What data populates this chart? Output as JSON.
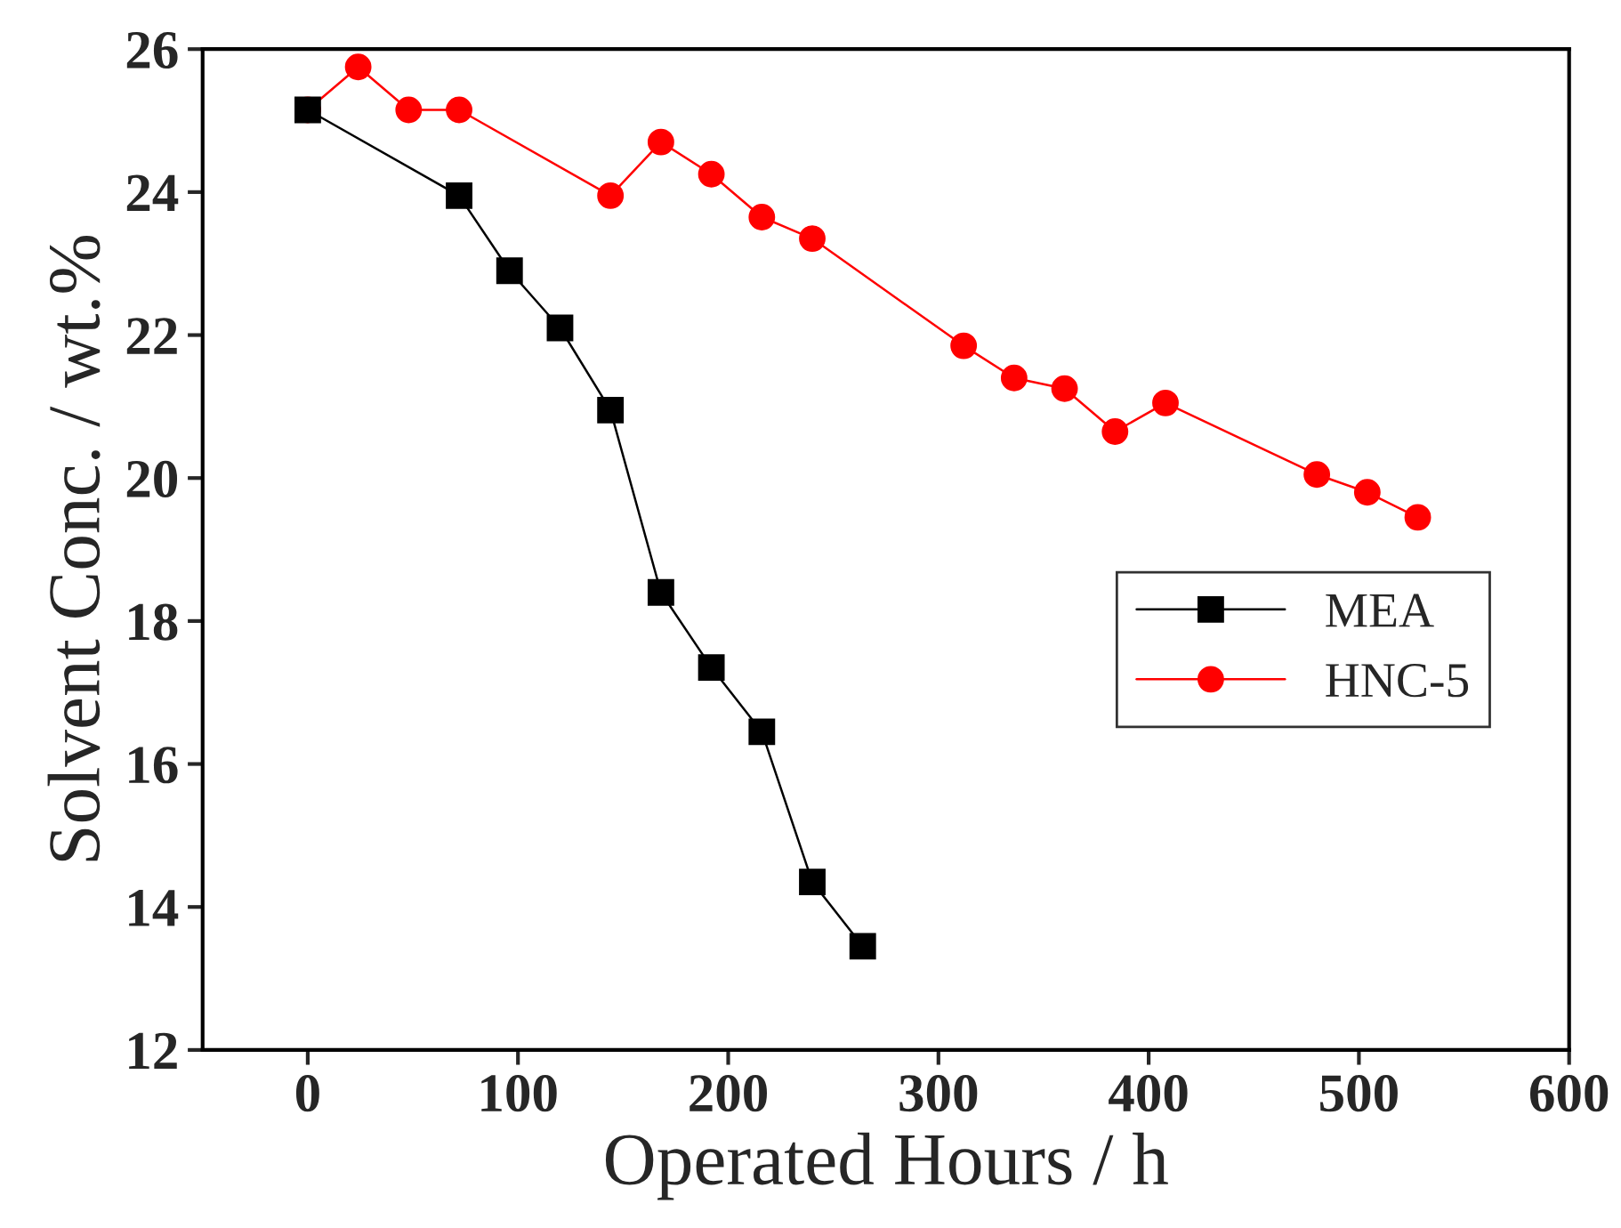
{
  "chart_data": {
    "type": "line",
    "xlabel": "Operated Hours / h",
    "ylabel": "Solvent Conc. / wt.%",
    "xlim": [
      -50,
      600
    ],
    "xticks": [
      0,
      100,
      200,
      300,
      400,
      500,
      600
    ],
    "ylim": [
      12,
      26
    ],
    "yticks": [
      12,
      14,
      16,
      18,
      20,
      22,
      24,
      26
    ],
    "grid": false,
    "legend": "center right",
    "series": [
      {
        "name": "MEA",
        "color": "#000000",
        "marker": "square",
        "x": [
          0,
          72,
          96,
          120,
          144,
          168,
          192,
          216,
          240,
          264
        ],
        "values": [
          25.15,
          23.95,
          22.9,
          22.1,
          20.95,
          18.4,
          17.35,
          16.45,
          14.35,
          13.45
        ]
      },
      {
        "name": "HNC-5",
        "color": "#ff0000",
        "marker": "circle",
        "x": [
          0,
          24,
          48,
          72,
          144,
          168,
          192,
          216,
          240,
          312,
          336,
          360,
          384,
          408,
          480,
          504,
          528
        ],
        "values": [
          25.15,
          25.75,
          25.15,
          25.15,
          23.95,
          24.7,
          24.25,
          23.65,
          23.35,
          21.85,
          21.4,
          21.25,
          20.65,
          21.05,
          20.05,
          19.8,
          19.45
        ]
      }
    ]
  }
}
